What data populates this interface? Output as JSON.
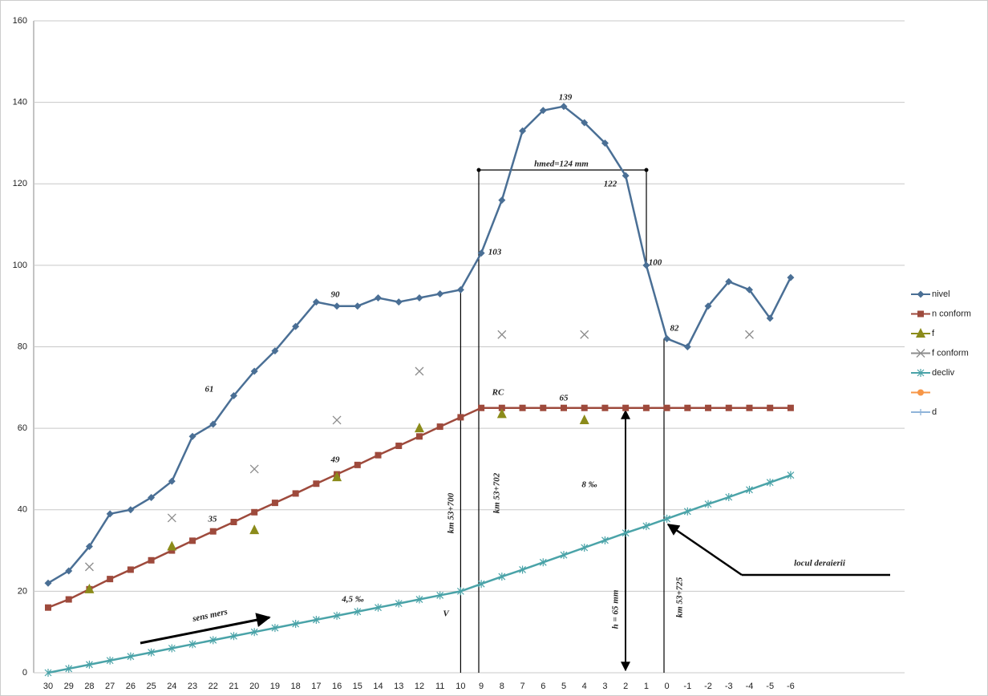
{
  "chart_data": {
    "type": "line",
    "categories": [
      "30",
      "29",
      "28",
      "27",
      "26",
      "25",
      "24",
      "23",
      "22",
      "21",
      "20",
      "19",
      "18",
      "17",
      "16",
      "15",
      "14",
      "13",
      "12",
      "11",
      "10",
      "9",
      "8",
      "7",
      "6",
      "5",
      "4",
      "3",
      "2",
      "1",
      "0",
      "-1",
      "-2",
      "-3",
      "-4",
      "-5",
      "-6"
    ],
    "ylim": [
      0,
      160
    ],
    "yticks": [
      0,
      20,
      40,
      60,
      80,
      100,
      120,
      140,
      160
    ],
    "grid": true,
    "legend": "right",
    "series": [
      {
        "name": "nivel",
        "color": "#4a6f95",
        "marker": "diamond",
        "values": [
          22,
          25,
          31,
          39,
          40,
          43,
          47,
          58,
          61,
          68,
          74,
          79,
          85,
          91,
          90,
          90,
          92,
          91,
          92,
          93,
          94,
          103,
          116,
          133,
          138,
          139,
          135,
          130,
          122,
          100,
          82,
          80,
          90,
          96,
          94,
          87,
          97
        ]
      },
      {
        "name": "n conform",
        "color": "#9e4a3c",
        "marker": "square",
        "values": [
          16,
          18,
          20.5,
          23,
          25.3,
          27.6,
          30,
          32.4,
          34.7,
          37,
          39.4,
          41.7,
          44,
          46.4,
          48.7,
          51,
          53.4,
          55.7,
          58,
          60.4,
          62.7,
          65,
          65,
          65,
          65,
          65,
          65,
          65,
          65,
          65,
          65,
          65,
          65,
          65,
          65,
          65,
          65
        ]
      },
      {
        "name": "f",
        "color": "#8b8b1a",
        "marker": "triangle",
        "values": [
          null,
          null,
          20.5,
          null,
          null,
          null,
          31,
          null,
          null,
          null,
          35,
          null,
          null,
          null,
          48,
          null,
          null,
          null,
          60,
          null,
          null,
          null,
          63.5,
          null,
          null,
          null,
          62,
          null,
          null,
          null,
          null,
          null,
          null,
          null,
          null,
          null,
          null
        ]
      },
      {
        "name": "f conform",
        "color": "#8c8c8c",
        "marker": "x",
        "values": [
          null,
          null,
          26,
          null,
          null,
          null,
          38,
          null,
          null,
          null,
          50,
          null,
          null,
          null,
          62,
          null,
          null,
          null,
          74,
          null,
          null,
          null,
          83,
          null,
          null,
          null,
          83,
          null,
          null,
          null,
          null,
          null,
          null,
          null,
          83,
          null,
          null
        ]
      },
      {
        "name": "decliv",
        "color": "#4aa3a8",
        "marker": "star",
        "values": [
          0,
          1,
          2,
          3,
          4,
          5,
          6,
          7,
          8,
          9,
          10,
          11,
          12,
          13,
          14,
          15,
          16,
          17,
          18,
          19,
          20,
          21.8,
          23.6,
          25.3,
          27.1,
          28.9,
          30.7,
          32.5,
          34.3,
          36,
          37.8,
          39.6,
          41.4,
          43.1,
          44.9,
          46.7,
          48.5
        ]
      },
      {
        "color": "#f79646",
        "marker": "circle",
        "values": [
          null,
          null,
          null,
          null,
          null,
          null,
          null,
          null,
          null,
          null,
          null,
          null,
          null,
          null,
          null,
          null,
          null,
          null,
          null,
          null,
          null,
          null,
          null,
          null,
          null,
          null,
          null,
          null,
          null,
          null,
          null,
          null,
          null,
          null,
          null,
          null,
          null
        ]
      },
      {
        "name": "d",
        "color": "#8fb4d9",
        "marker": "plus",
        "values": [
          null,
          null,
          null,
          null,
          null,
          null,
          null,
          null,
          null,
          null,
          null,
          null,
          null,
          null,
          null,
          null,
          null,
          null,
          null,
          null,
          null,
          null,
          null,
          null,
          null,
          null,
          null,
          null,
          null,
          null,
          null,
          null,
          null,
          null,
          null,
          null,
          null
        ]
      }
    ],
    "annotations": [
      "90",
      "61",
      "35",
      "49",
      "65",
      "139",
      "103",
      "122",
      "100",
      "82",
      "hmed=124 mm",
      "RC",
      "V",
      "km 53+700",
      "km 53+702",
      "km 53+725",
      "h = 65 mm",
      "8 ‰",
      "4,5 ‰",
      "sens mers",
      "locul deraierii"
    ]
  }
}
